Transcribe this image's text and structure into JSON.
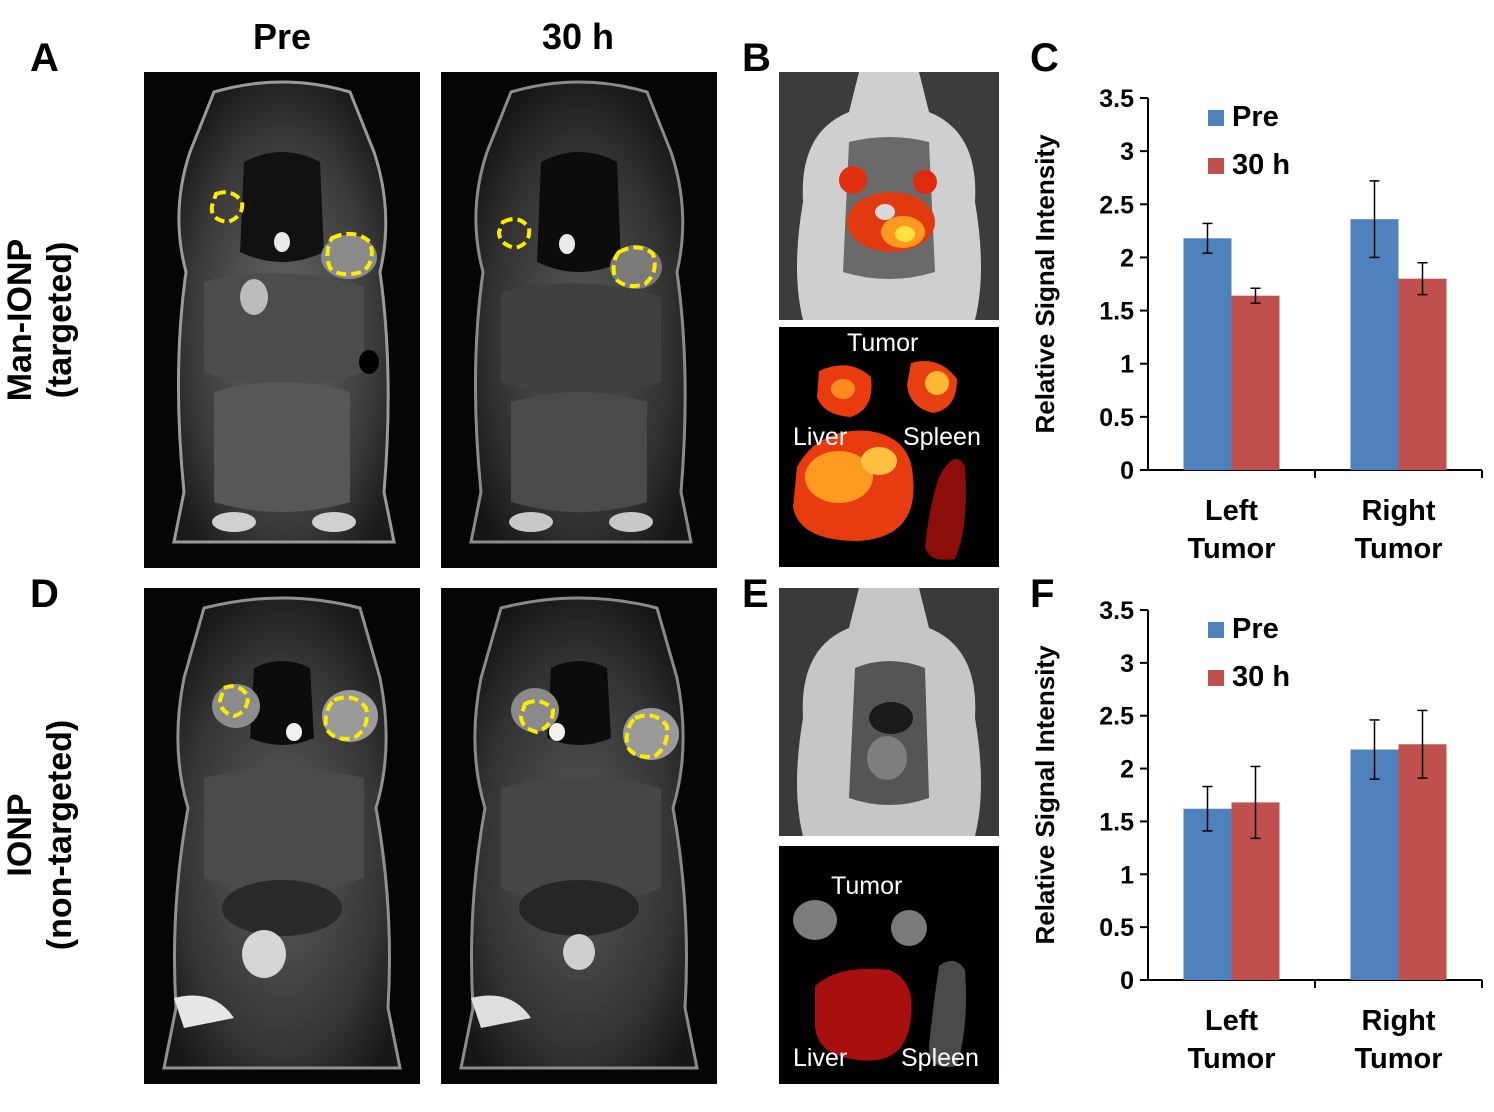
{
  "panels": {
    "A": "A",
    "B": "B",
    "C": "C",
    "D": "D",
    "E": "E",
    "F": "F"
  },
  "columns": {
    "pre": "Pre",
    "post": "30 h"
  },
  "rows": {
    "top": {
      "line1": "Man-IONP",
      "line2": "(targeted)"
    },
    "bottom": {
      "line1": "IONP",
      "line2": "(non-targeted)"
    }
  },
  "organs_top": {
    "tumor": "Tumor",
    "liver": "Liver",
    "spleen": "Spleen"
  },
  "organs_bottom": {
    "tumor": "Tumor",
    "liver": "Liver",
    "spleen": "Spleen"
  },
  "colors": {
    "pre": "#4F81BD",
    "post": "#C0504D",
    "roi": "#FFEB00"
  },
  "chart_data": [
    {
      "type": "bar",
      "panel": "C",
      "categories": [
        "Left Tumor",
        "Right Tumor"
      ],
      "series": [
        {
          "name": "Pre",
          "values": [
            2.18,
            2.36
          ],
          "errors": [
            0.14,
            0.36
          ]
        },
        {
          "name": "30 h",
          "values": [
            1.64,
            1.8
          ],
          "errors": [
            0.07,
            0.15
          ]
        }
      ],
      "ylabel": "Relative Signal Intensity",
      "ylim": [
        0,
        3.5
      ],
      "yticks": [
        "0",
        "0.5",
        "1",
        "1.5",
        "2",
        "2.5",
        "3",
        "3.5"
      ],
      "legend": "top-left inside",
      "grid": false
    },
    {
      "type": "bar",
      "panel": "F",
      "categories": [
        "Left Tumor",
        "Right Tumor"
      ],
      "series": [
        {
          "name": "Pre",
          "values": [
            1.62,
            2.18
          ],
          "errors": [
            0.21,
            0.28
          ]
        },
        {
          "name": "30 h",
          "values": [
            1.68,
            2.23
          ],
          "errors": [
            0.34,
            0.32
          ]
        }
      ],
      "ylabel": "Relative Signal Intensity",
      "ylim": [
        0,
        3.5
      ],
      "yticks": [
        "0",
        "0.5",
        "1",
        "1.5",
        "2",
        "2.5",
        "3",
        "3.5"
      ],
      "legend": "top-left inside",
      "grid": false
    }
  ]
}
